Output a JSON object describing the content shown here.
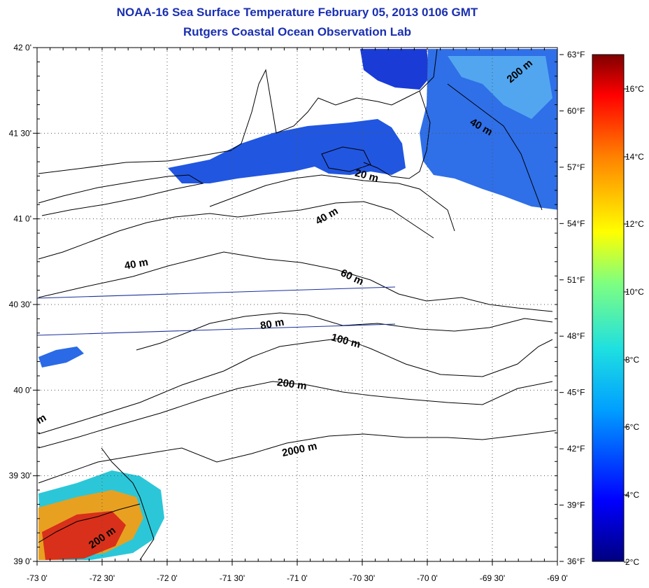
{
  "title": "NOAA-16 Sea Surface Temperature February 05, 2013 0106 GMT",
  "subtitle": "Rutgers Coastal Ocean Observation Lab",
  "lon_ticks": [
    "-73 0'",
    "-72 30'",
    "-72 0'",
    "-71 30'",
    "-71 0'",
    "-70 30'",
    "-70 0'",
    "-69 30'",
    "-69 0'"
  ],
  "lat_ticks": [
    "42 0'",
    "41 30'",
    "41 0'",
    "40 30'",
    "40 0'",
    "39 30'",
    "39 0'"
  ],
  "colorbar": {
    "fahrenheit_labels": [
      "63°F",
      "60°F",
      "57°F",
      "54°F",
      "51°F",
      "48°F",
      "45°F",
      "42°F",
      "39°F",
      "36°F"
    ],
    "celsius_labels": [
      "16°C",
      "14°C",
      "12°C",
      "10°C",
      "8°C",
      "6°C",
      "4°C",
      "2°C"
    ]
  },
  "contour_labels": [
    "200 m",
    "40 m",
    "20 m",
    "40 m",
    "40 m",
    "60 m",
    "80 m",
    "100 m",
    "200 m",
    "2000 m",
    "200 m",
    "m"
  ],
  "colors": {
    "title": "#1a2fb0",
    "cold": "#1a3bd6",
    "warm": "#e0301a"
  }
}
